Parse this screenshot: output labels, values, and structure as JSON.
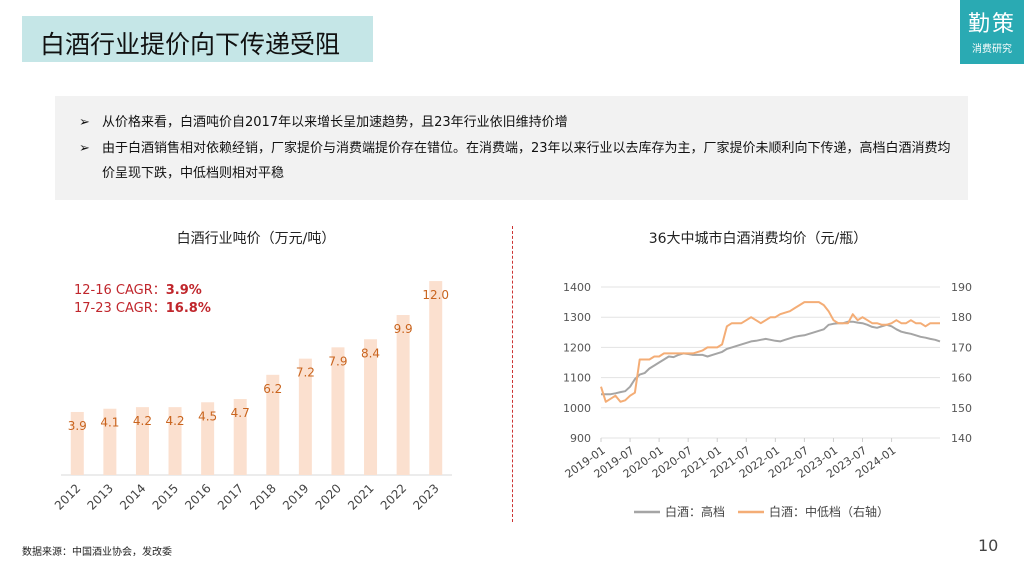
{
  "header": {
    "title": "白酒行业提价向下传递受阻"
  },
  "logo": {
    "main": "勤策",
    "sub": "消费研究"
  },
  "bullets": [
    {
      "arrow": "➢",
      "text": "从价格来看，白酒吨价自2017年以来增长呈加速趋势，且23年行业依旧维持价增"
    },
    {
      "arrow": "➢",
      "text": "由于白酒销售相对依赖经销，厂家提价与消费端提价存在错位。在消费端，23年以来行业以去库存为主，厂家提价未顺利向下传递，高档白酒消费均价呈现下跌，中低档则相对平稳"
    }
  ],
  "footer": {
    "source": "数据来源：中国酒业协会，发改委"
  },
  "page": {
    "number": "10"
  },
  "colors": {
    "bar": "#fbe0cf",
    "label": "#c9641e",
    "cagr": "#c0262c",
    "grey": "#a5a5a5",
    "orange": "#f4ad76"
  },
  "chart_data": [
    {
      "type": "bar",
      "title": "白酒行业吨价（万元/吨）",
      "categories": [
        "2012",
        "2013",
        "2014",
        "2015",
        "2016",
        "2017",
        "2018",
        "2019",
        "2020",
        "2021",
        "2022",
        "2023"
      ],
      "values": [
        3.9,
        4.1,
        4.2,
        4.2,
        4.5,
        4.7,
        6.2,
        7.2,
        7.9,
        8.4,
        9.9,
        12.0
      ],
      "value_labels": [
        "3.9",
        "4.1",
        "4.2",
        "4.2",
        "4.5",
        "4.7",
        "6.2",
        "7.2",
        "7.9",
        "8.4",
        "9.9",
        "12.0"
      ],
      "ylim": [
        0,
        12.5
      ],
      "annotations": [
        {
          "label": "12-16 CAGR：",
          "value": "3.9%"
        },
        {
          "label": "17-23 CAGR：",
          "value": "16.8%"
        }
      ]
    },
    {
      "type": "line",
      "title": "36大中城市白酒消费均价（元/瓶）",
      "x_ticks": [
        "2019-01",
        "2019-07",
        "2020-01",
        "2020-07",
        "2021-01",
        "2021-07",
        "2022-01",
        "2022-07",
        "2023-01",
        "2023-07",
        "2024-01"
      ],
      "y_left": {
        "ticks": [
          "1400",
          "1300",
          "1200",
          "1100",
          "1000",
          "900"
        ],
        "range": [
          900,
          1400
        ]
      },
      "y_right": {
        "ticks": [
          "190",
          "180",
          "170",
          "160",
          "150",
          "140"
        ],
        "range": [
          140,
          190
        ]
      },
      "grid": true,
      "legend_position": "bottom",
      "series": [
        {
          "name": "白酒：高档",
          "axis": "left",
          "values": [
            1045,
            1045,
            1045,
            1048,
            1052,
            1055,
            1070,
            1095,
            1110,
            1115,
            1130,
            1140,
            1150,
            1160,
            1170,
            1168,
            1175,
            1180,
            1178,
            1175,
            1175,
            1175,
            1170,
            1175,
            1180,
            1185,
            1195,
            1200,
            1205,
            1210,
            1215,
            1220,
            1222,
            1225,
            1228,
            1225,
            1222,
            1220,
            1225,
            1230,
            1235,
            1238,
            1240,
            1245,
            1250,
            1255,
            1260,
            1275,
            1278,
            1280,
            1280,
            1285,
            1285,
            1282,
            1280,
            1275,
            1268,
            1265,
            1270,
            1275,
            1270,
            1260,
            1252,
            1248,
            1245,
            1240,
            1235,
            1232,
            1228,
            1225,
            1220
          ]
        },
        {
          "name": "白酒：中低档（右轴）",
          "axis": "right",
          "values": [
            157,
            152,
            153,
            154,
            152,
            152.5,
            154,
            155,
            166,
            166,
            166,
            167,
            167,
            168,
            168,
            168,
            168,
            168,
            168,
            168,
            168.5,
            169,
            170,
            170,
            170,
            171,
            177,
            178,
            178,
            178,
            179,
            180,
            179,
            178,
            179,
            180,
            180,
            181,
            181.5,
            182,
            183,
            184,
            185,
            185,
            185,
            185,
            184,
            182,
            179,
            178,
            178,
            178,
            181,
            179,
            180,
            179,
            178,
            178,
            177.5,
            177.5,
            178,
            179,
            178,
            178,
            179,
            178,
            178,
            177,
            178,
            178,
            178
          ]
        }
      ]
    }
  ]
}
